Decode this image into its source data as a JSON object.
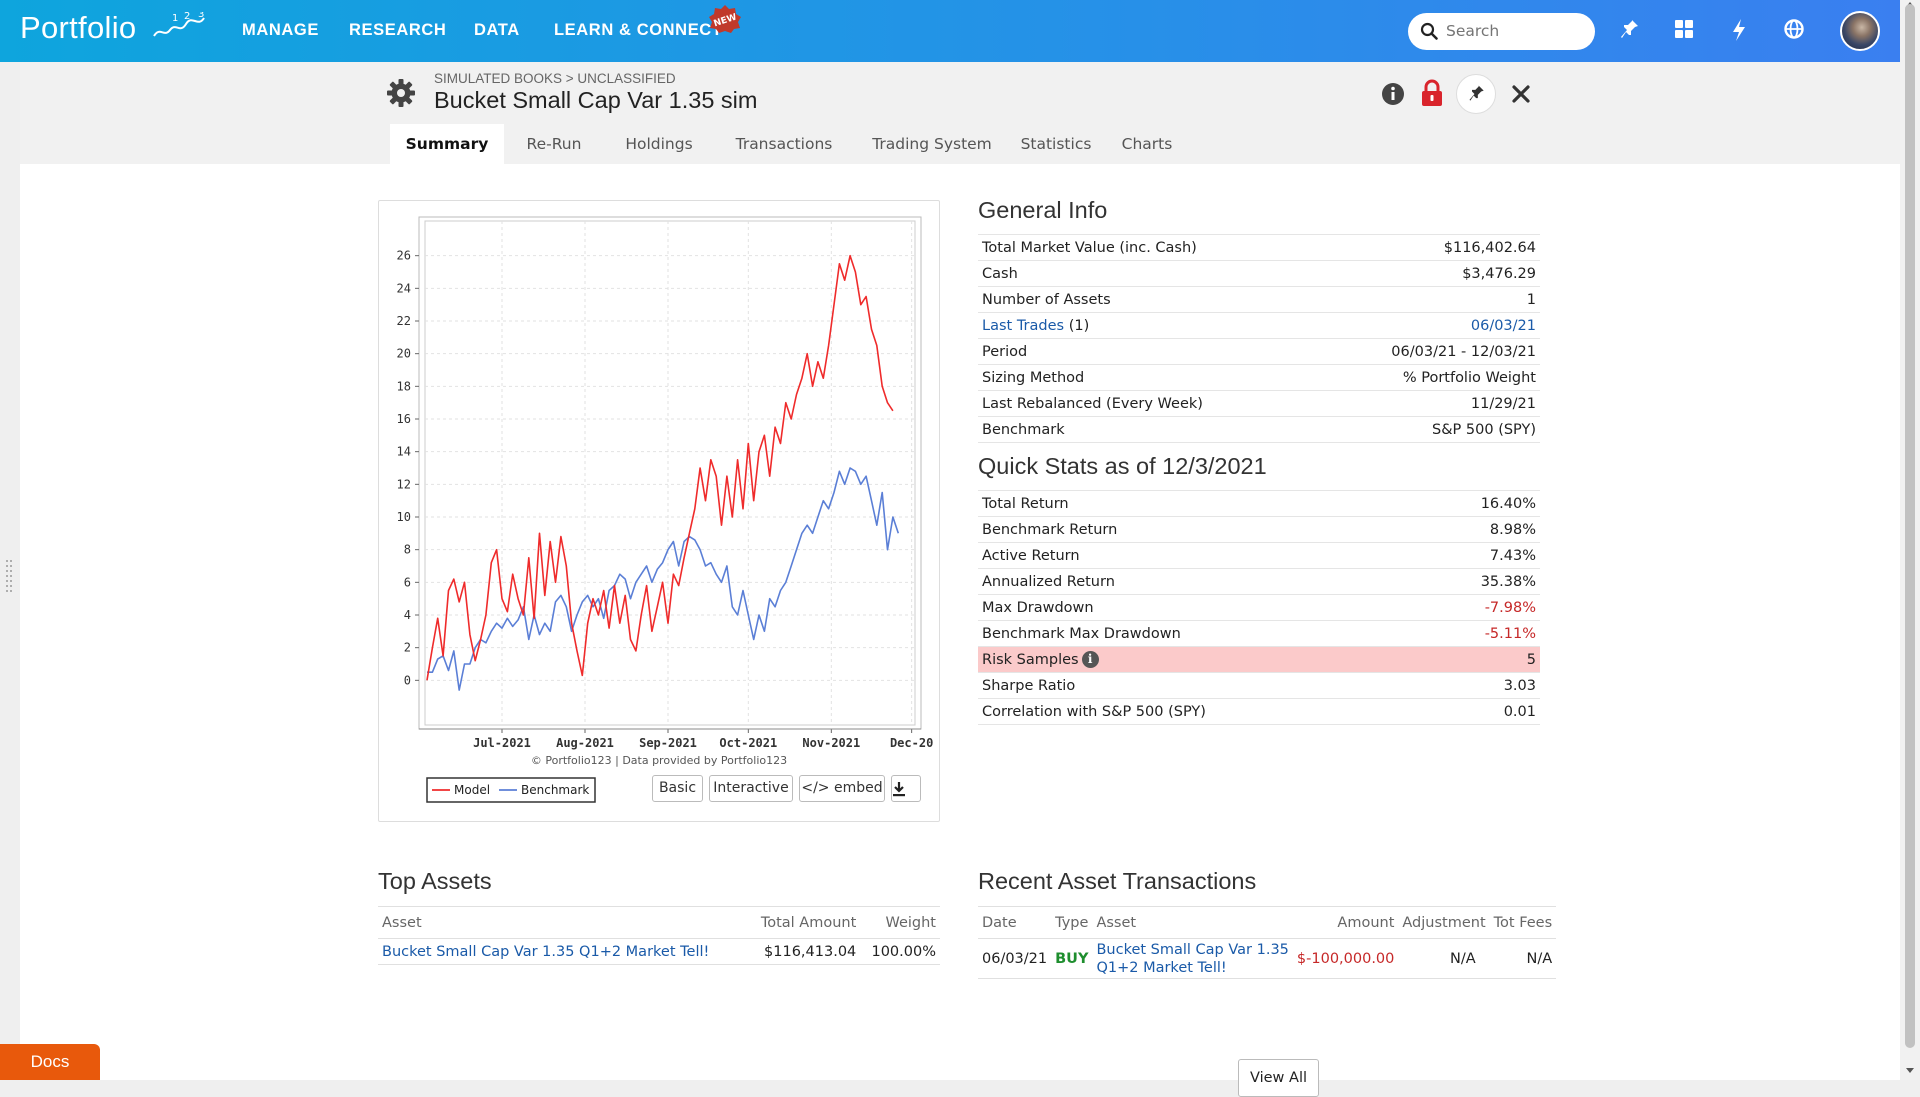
{
  "app": {
    "logo_text": "Portfolio",
    "logo_sup": "1 2 3",
    "nav": [
      "MANAGE",
      "RESEARCH",
      "DATA",
      "LEARN & CONNECT"
    ],
    "new_badge": "NEW",
    "search_placeholder": "Search",
    "icons": [
      "pin-icon",
      "grid-icon",
      "bolt-icon",
      "globe-icon"
    ]
  },
  "header": {
    "breadcrumb": "SIMULATED BOOKS > UNCLASSIFIED",
    "title": "Bucket Small Cap Var 1.35 sim"
  },
  "tabs": [
    "Summary",
    "Re-Run",
    "Holdings",
    "Transactions",
    "Trading System",
    "Statistics",
    "Charts"
  ],
  "active_tab": "Summary",
  "chart_controls": {
    "copyright": "© Portfolio123 | Data provided by Portfolio123",
    "basic": "Basic",
    "interactive": "Interactive",
    "embed": "</> embed"
  },
  "general_info": {
    "title": "General Info",
    "rows": [
      {
        "label": "Total Market Value (inc. Cash)",
        "value": "$116,402.64"
      },
      {
        "label": "Cash",
        "value": "$3,476.29"
      },
      {
        "label": "Number of Assets",
        "value": "1"
      },
      {
        "label": "Last Trades",
        "label_suffix": "(1)",
        "value": "06/03/21"
      },
      {
        "label": "Period",
        "value": "06/03/21 - 12/03/21"
      },
      {
        "label": "Sizing Method",
        "value": "% Portfolio Weight"
      },
      {
        "label": "Last Rebalanced (Every Week)",
        "value": "11/29/21"
      },
      {
        "label": "Benchmark",
        "value": "S&P 500 (SPY)"
      }
    ]
  },
  "quick_stats": {
    "title": "Quick Stats as of 12/3/2021",
    "rows": [
      {
        "label": "Total Return",
        "value": "16.40%"
      },
      {
        "label": "Benchmark Return",
        "value": "8.98%"
      },
      {
        "label": "Active Return",
        "value": "7.43%"
      },
      {
        "label": "Annualized Return",
        "value": "35.38%"
      },
      {
        "label": "Max Drawdown",
        "value": "-7.98%"
      },
      {
        "label": "Benchmark Max Drawdown",
        "value": "-5.11%"
      },
      {
        "label": "Risk Samples",
        "value": "5"
      },
      {
        "label": "Sharpe Ratio",
        "value": "3.03"
      },
      {
        "label": "Correlation with S&P 500 (SPY)",
        "value": "0.01"
      }
    ]
  },
  "top_assets": {
    "title": "Top Assets",
    "columns": [
      "Asset",
      "Total Amount",
      "Weight"
    ],
    "rows": [
      {
        "asset": "Bucket Small Cap Var 1.35 Q1+2 Market Tell!",
        "amount": "$116,413.04",
        "weight": "100.00%"
      }
    ]
  },
  "recent_transactions": {
    "title": "Recent Asset Transactions",
    "columns": [
      "Date",
      "Type",
      "Asset",
      "Amount",
      "Adjustment",
      "Tot Fees"
    ],
    "rows": [
      {
        "date": "06/03/21",
        "type": "BUY",
        "asset_line1": "Bucket Small Cap Var 1.35",
        "asset_line2": "Q1+2 Market Tell!",
        "amount": "$-100,000.00",
        "adjustment": "N/A",
        "fees": "N/A"
      }
    ],
    "view_all": "View All"
  },
  "docs_button": "Docs",
  "colors": {
    "model": "#ef2b2b",
    "benchmark": "#5b7fd6",
    "link": "#1a5aa8",
    "negative": "#c62828",
    "highlight_row": "#fbcaca",
    "docs": "#e8590c"
  },
  "chart_data": {
    "type": "line",
    "title": "",
    "xlabel": "",
    "ylabel": "",
    "ylim": [
      -2,
      28
    ],
    "yticks": [
      0,
      2,
      4,
      6,
      8,
      10,
      12,
      14,
      16,
      18,
      20,
      22,
      24,
      26
    ],
    "x_tick_labels": [
      "Jul-2021",
      "Aug-2021",
      "Sep-2021",
      "Oct-2021",
      "Nov-2021",
      "Dec-20"
    ],
    "x_tick_dates": [
      "2021-07-01",
      "2021-08-01",
      "2021-09-01",
      "2021-10-01",
      "2021-11-01",
      "2021-12-01"
    ],
    "grid": true,
    "legend": "bottom",
    "series": [
      {
        "name": "Model",
        "color": "#ef2b2b",
        "points": [
          [
            "2021-06-03",
            0.0
          ],
          [
            "2021-06-05",
            2.0
          ],
          [
            "2021-06-07",
            3.8
          ],
          [
            "2021-06-09",
            1.5
          ],
          [
            "2021-06-11",
            5.5
          ],
          [
            "2021-06-13",
            6.2
          ],
          [
            "2021-06-15",
            4.8
          ],
          [
            "2021-06-17",
            6.0
          ],
          [
            "2021-06-19",
            2.8
          ],
          [
            "2021-06-21",
            1.2
          ],
          [
            "2021-06-23",
            2.5
          ],
          [
            "2021-06-25",
            4.0
          ],
          [
            "2021-06-27",
            7.2
          ],
          [
            "2021-06-29",
            8.0
          ],
          [
            "2021-07-01",
            5.0
          ],
          [
            "2021-07-03",
            4.2
          ],
          [
            "2021-07-05",
            6.5
          ],
          [
            "2021-07-07",
            5.0
          ],
          [
            "2021-07-09",
            4.0
          ],
          [
            "2021-07-11",
            7.5
          ],
          [
            "2021-07-13",
            3.8
          ],
          [
            "2021-07-15",
            9.0
          ],
          [
            "2021-07-17",
            5.2
          ],
          [
            "2021-07-19",
            8.5
          ],
          [
            "2021-07-21",
            6.0
          ],
          [
            "2021-07-23",
            8.8
          ],
          [
            "2021-07-25",
            7.0
          ],
          [
            "2021-07-27",
            3.5
          ],
          [
            "2021-07-29",
            1.8
          ],
          [
            "2021-07-31",
            0.3
          ],
          [
            "2021-08-02",
            3.5
          ],
          [
            "2021-08-04",
            5.0
          ],
          [
            "2021-08-06",
            4.0
          ],
          [
            "2021-08-08",
            5.5
          ],
          [
            "2021-08-10",
            3.2
          ],
          [
            "2021-08-12",
            5.8
          ],
          [
            "2021-08-14",
            3.5
          ],
          [
            "2021-08-16",
            5.2
          ],
          [
            "2021-08-18",
            2.5
          ],
          [
            "2021-08-20",
            1.8
          ],
          [
            "2021-08-22",
            4.0
          ],
          [
            "2021-08-24",
            5.8
          ],
          [
            "2021-08-26",
            3.0
          ],
          [
            "2021-08-28",
            4.5
          ],
          [
            "2021-08-30",
            6.0
          ],
          [
            "2021-09-01",
            3.5
          ],
          [
            "2021-09-03",
            6.5
          ],
          [
            "2021-09-05",
            5.8
          ],
          [
            "2021-09-07",
            7.5
          ],
          [
            "2021-09-09",
            9.0
          ],
          [
            "2021-09-11",
            10.5
          ],
          [
            "2021-09-13",
            13.0
          ],
          [
            "2021-09-15",
            11.0
          ],
          [
            "2021-09-17",
            13.5
          ],
          [
            "2021-09-19",
            12.5
          ],
          [
            "2021-09-21",
            9.5
          ],
          [
            "2021-09-23",
            12.5
          ],
          [
            "2021-09-25",
            10.0
          ],
          [
            "2021-09-27",
            13.5
          ],
          [
            "2021-09-29",
            10.5
          ],
          [
            "2021-10-01",
            14.5
          ],
          [
            "2021-10-03",
            11.0
          ],
          [
            "2021-10-05",
            14.0
          ],
          [
            "2021-10-07",
            15.0
          ],
          [
            "2021-10-09",
            12.5
          ],
          [
            "2021-10-11",
            15.5
          ],
          [
            "2021-10-13",
            14.5
          ],
          [
            "2021-10-15",
            17.0
          ],
          [
            "2021-10-17",
            16.0
          ],
          [
            "2021-10-19",
            17.5
          ],
          [
            "2021-10-21",
            18.5
          ],
          [
            "2021-10-23",
            20.0
          ],
          [
            "2021-10-25",
            18.0
          ],
          [
            "2021-10-27",
            19.5
          ],
          [
            "2021-10-29",
            18.5
          ],
          [
            "2021-10-31",
            20.5
          ],
          [
            "2021-11-02",
            23.0
          ],
          [
            "2021-11-04",
            25.5
          ],
          [
            "2021-11-06",
            24.5
          ],
          [
            "2021-11-08",
            26.0
          ],
          [
            "2021-11-10",
            25.0
          ],
          [
            "2021-11-12",
            23.0
          ],
          [
            "2021-11-14",
            23.5
          ],
          [
            "2021-11-16",
            21.5
          ],
          [
            "2021-11-18",
            20.5
          ],
          [
            "2021-11-20",
            18.0
          ],
          [
            "2021-11-22",
            17.0
          ],
          [
            "2021-11-24",
            16.5
          ]
        ]
      },
      {
        "name": "Benchmark",
        "color": "#5b7fd6",
        "points": [
          [
            "2021-06-03",
            0.5
          ],
          [
            "2021-06-05",
            0.5
          ],
          [
            "2021-06-07",
            1.3
          ],
          [
            "2021-06-09",
            1.5
          ],
          [
            "2021-06-11",
            0.6
          ],
          [
            "2021-06-13",
            1.8
          ],
          [
            "2021-06-15",
            -0.6
          ],
          [
            "2021-06-17",
            1.0
          ],
          [
            "2021-06-19",
            1.0
          ],
          [
            "2021-06-21",
            2.0
          ],
          [
            "2021-06-23",
            2.5
          ],
          [
            "2021-06-25",
            2.3
          ],
          [
            "2021-06-27",
            3.0
          ],
          [
            "2021-06-29",
            3.5
          ],
          [
            "2021-07-01",
            3.2
          ],
          [
            "2021-07-03",
            3.8
          ],
          [
            "2021-07-05",
            3.3
          ],
          [
            "2021-07-07",
            3.7
          ],
          [
            "2021-07-09",
            4.5
          ],
          [
            "2021-07-11",
            2.5
          ],
          [
            "2021-07-13",
            4.0
          ],
          [
            "2021-07-15",
            2.8
          ],
          [
            "2021-07-17",
            3.5
          ],
          [
            "2021-07-19",
            3.0
          ],
          [
            "2021-07-21",
            4.8
          ],
          [
            "2021-07-23",
            5.2
          ],
          [
            "2021-07-25",
            4.5
          ],
          [
            "2021-07-27",
            3.0
          ],
          [
            "2021-07-29",
            4.0
          ],
          [
            "2021-07-31",
            4.8
          ],
          [
            "2021-08-02",
            5.2
          ],
          [
            "2021-08-04",
            4.5
          ],
          [
            "2021-08-06",
            5.0
          ],
          [
            "2021-08-08",
            3.8
          ],
          [
            "2021-08-10",
            5.5
          ],
          [
            "2021-08-12",
            5.8
          ],
          [
            "2021-08-14",
            6.5
          ],
          [
            "2021-08-16",
            6.2
          ],
          [
            "2021-08-18",
            5.0
          ],
          [
            "2021-08-20",
            6.0
          ],
          [
            "2021-08-22",
            6.5
          ],
          [
            "2021-08-24",
            7.0
          ],
          [
            "2021-08-26",
            6.0
          ],
          [
            "2021-08-28",
            6.8
          ],
          [
            "2021-08-30",
            7.2
          ],
          [
            "2021-09-01",
            8.0
          ],
          [
            "2021-09-03",
            8.5
          ],
          [
            "2021-09-05",
            7.0
          ],
          [
            "2021-09-07",
            8.5
          ],
          [
            "2021-09-09",
            8.8
          ],
          [
            "2021-09-11",
            8.6
          ],
          [
            "2021-09-13",
            8.0
          ],
          [
            "2021-09-15",
            7.0
          ],
          [
            "2021-09-17",
            7.2
          ],
          [
            "2021-09-19",
            6.5
          ],
          [
            "2021-09-21",
            6.0
          ],
          [
            "2021-09-23",
            7.0
          ],
          [
            "2021-09-25",
            4.5
          ],
          [
            "2021-09-27",
            4.0
          ],
          [
            "2021-09-29",
            5.5
          ],
          [
            "2021-10-01",
            4.0
          ],
          [
            "2021-10-03",
            2.5
          ],
          [
            "2021-10-05",
            4.0
          ],
          [
            "2021-10-07",
            3.0
          ],
          [
            "2021-10-09",
            5.0
          ],
          [
            "2021-10-11",
            4.5
          ],
          [
            "2021-10-13",
            5.5
          ],
          [
            "2021-10-15",
            6.0
          ],
          [
            "2021-10-17",
            7.0
          ],
          [
            "2021-10-19",
            8.0
          ],
          [
            "2021-10-21",
            9.0
          ],
          [
            "2021-10-23",
            9.5
          ],
          [
            "2021-10-25",
            9.0
          ],
          [
            "2021-10-27",
            10.0
          ],
          [
            "2021-10-29",
            11.0
          ],
          [
            "2021-10-31",
            10.5
          ],
          [
            "2021-11-02",
            11.5
          ],
          [
            "2021-11-04",
            12.8
          ],
          [
            "2021-11-06",
            12.0
          ],
          [
            "2021-11-08",
            13.0
          ],
          [
            "2021-11-10",
            12.8
          ],
          [
            "2021-11-12",
            12.0
          ],
          [
            "2021-11-14",
            12.5
          ],
          [
            "2021-11-16",
            11.0
          ],
          [
            "2021-11-18",
            9.5
          ],
          [
            "2021-11-20",
            11.5
          ],
          [
            "2021-11-22",
            8.0
          ],
          [
            "2021-11-24",
            10.0
          ],
          [
            "2021-11-26",
            9.0
          ]
        ]
      }
    ]
  }
}
